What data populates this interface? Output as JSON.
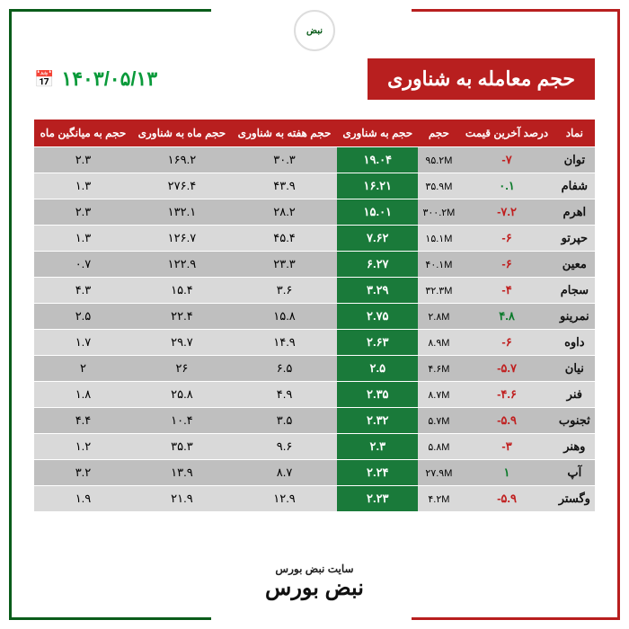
{
  "title": "حجم معامله به شناوری",
  "date": "۱۴۰۳/۰۵/۱۳",
  "logo_text": "نبض",
  "footer_label": "سایت نبض بورس",
  "footer_logo": "نبض بورس",
  "columns": [
    "نماد",
    "درصد آخرین قیمت",
    "حجم",
    "حجم به شناوری",
    "حجم هفته به شناوری",
    "حجم ماه به شناوری",
    "حجم به میانگین ماه"
  ],
  "colors": {
    "header_bg": "#b81f1f",
    "float_col_bg": "#1a7a3a",
    "row_odd": "#bfbfbf",
    "row_even": "#d9d9d9",
    "pos": "#0a7a2a",
    "neg": "#c01f1f",
    "date": "#0a9a3a"
  },
  "rows": [
    {
      "sym": "توان",
      "pct": "-۷",
      "pct_sign": "neg",
      "vol": "۹۵.۲M",
      "float": "۱۹.۰۴",
      "week": "۳۰.۳",
      "month": "۱۶۹.۲",
      "avg": "۲.۳"
    },
    {
      "sym": "شفام",
      "pct": "۰.۱",
      "pct_sign": "pos",
      "vol": "۳۵.۹M",
      "float": "۱۶.۲۱",
      "week": "۴۳.۹",
      "month": "۲۷۶.۴",
      "avg": "۱.۳"
    },
    {
      "sym": "اهرم",
      "pct": "-۷.۲",
      "pct_sign": "neg",
      "vol": "۳۰۰.۲M",
      "float": "۱۵.۰۱",
      "week": "۲۸.۲",
      "month": "۱۳۲.۱",
      "avg": "۲.۳"
    },
    {
      "sym": "حپرتو",
      "pct": "-۶",
      "pct_sign": "neg",
      "vol": "۱۵.۱M",
      "float": "۷.۶۲",
      "week": "۴۵.۴",
      "month": "۱۲۶.۷",
      "avg": "۱.۳"
    },
    {
      "sym": "معین",
      "pct": "-۶",
      "pct_sign": "neg",
      "vol": "۴۰.۱M",
      "float": "۶.۲۷",
      "week": "۲۳.۳",
      "month": "۱۲۲.۹",
      "avg": "۰.۷"
    },
    {
      "sym": "سجام",
      "pct": "-۴",
      "pct_sign": "neg",
      "vol": "۳۲.۳M",
      "float": "۳.۲۹",
      "week": "۳.۶",
      "month": "۱۵.۴",
      "avg": "۴.۳"
    },
    {
      "sym": "نمرینو",
      "pct": "۴.۸",
      "pct_sign": "pos",
      "vol": "۲.۸M",
      "float": "۲.۷۵",
      "week": "۱۵.۸",
      "month": "۲۲.۴",
      "avg": "۲.۵"
    },
    {
      "sym": "داوه",
      "pct": "-۶",
      "pct_sign": "neg",
      "vol": "۸.۹M",
      "float": "۲.۶۳",
      "week": "۱۴.۹",
      "month": "۲۹.۷",
      "avg": "۱.۷"
    },
    {
      "sym": "نیان",
      "pct": "-۵.۷",
      "pct_sign": "neg",
      "vol": "۴.۶M",
      "float": "۲.۵",
      "week": "۶.۵",
      "month": "۲۶",
      "avg": "۲"
    },
    {
      "sym": "فنر",
      "pct": "-۴.۶",
      "pct_sign": "neg",
      "vol": "۸.۷M",
      "float": "۲.۳۵",
      "week": "۴.۹",
      "month": "۲۵.۸",
      "avg": "۱.۸"
    },
    {
      "sym": "ثجنوب",
      "pct": "-۵.۹",
      "pct_sign": "neg",
      "vol": "۵.۷M",
      "float": "۲.۳۲",
      "week": "۳.۵",
      "month": "۱۰.۴",
      "avg": "۴.۴"
    },
    {
      "sym": "وهنر",
      "pct": "-۳",
      "pct_sign": "neg",
      "vol": "۵.۸M",
      "float": "۲.۳",
      "week": "۹.۶",
      "month": "۳۵.۳",
      "avg": "۱.۲"
    },
    {
      "sym": "آپ",
      "pct": "۱",
      "pct_sign": "pos",
      "vol": "۲۷.۹M",
      "float": "۲.۲۴",
      "week": "۸.۷",
      "month": "۱۳.۹",
      "avg": "۳.۲"
    },
    {
      "sym": "وگستر",
      "pct": "-۵.۹",
      "pct_sign": "neg",
      "vol": "۴.۲M",
      "float": "۲.۲۳",
      "week": "۱۲.۹",
      "month": "۲۱.۹",
      "avg": "۱.۹"
    }
  ]
}
